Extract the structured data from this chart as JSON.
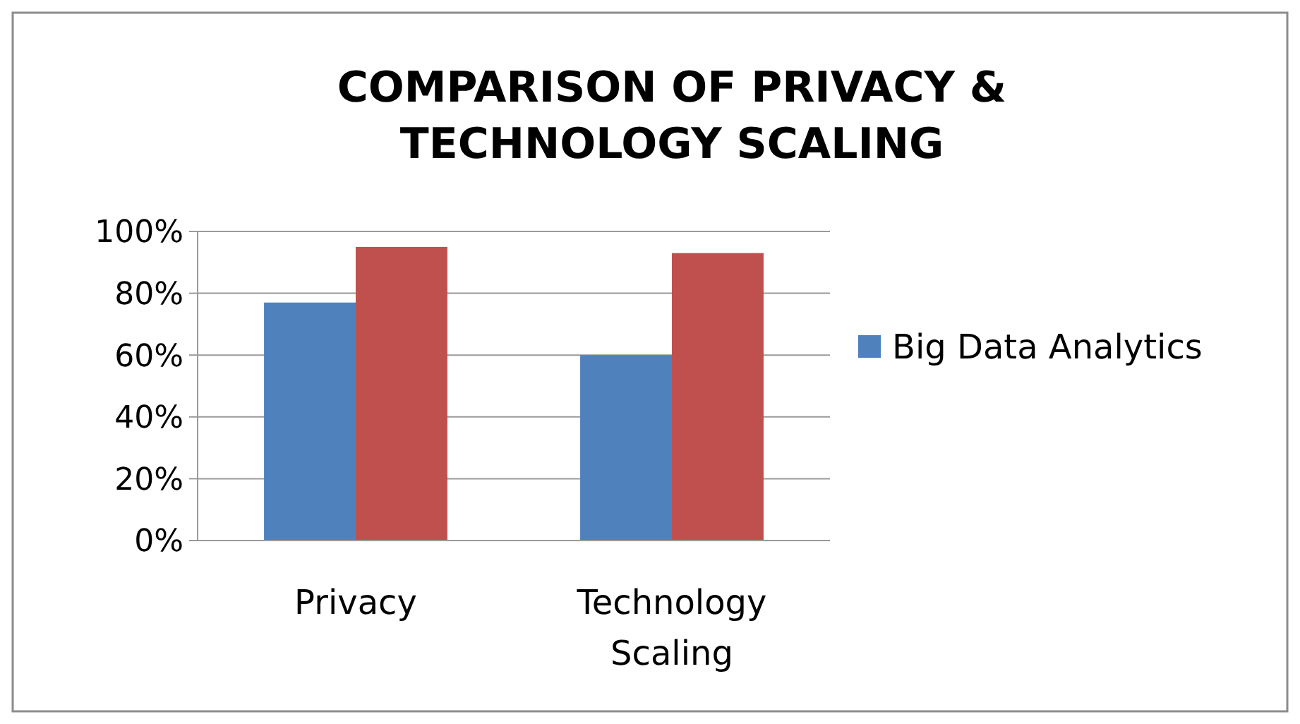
{
  "chart_data": {
    "type": "bar",
    "title": "COMPARISON OF PRIVACY &\nTECHNOLOGY SCALING",
    "categories": [
      "Privacy",
      "Technology Scaling"
    ],
    "series": [
      {
        "name": "Big Data Analytics",
        "color": "#4f81bd",
        "values": [
          77,
          60
        ]
      },
      {
        "color": "#c0504d",
        "values": [
          95,
          93
        ]
      }
    ],
    "ylim": [
      0,
      100
    ],
    "yticks": [
      {
        "value": 0,
        "label": "0%"
      },
      {
        "value": 20,
        "label": "20%"
      },
      {
        "value": 40,
        "label": "40%"
      },
      {
        "value": 60,
        "label": "60%"
      },
      {
        "value": 80,
        "label": "80%"
      },
      {
        "value": 100,
        "label": "100%"
      }
    ],
    "grid": "y",
    "legend": "right"
  }
}
